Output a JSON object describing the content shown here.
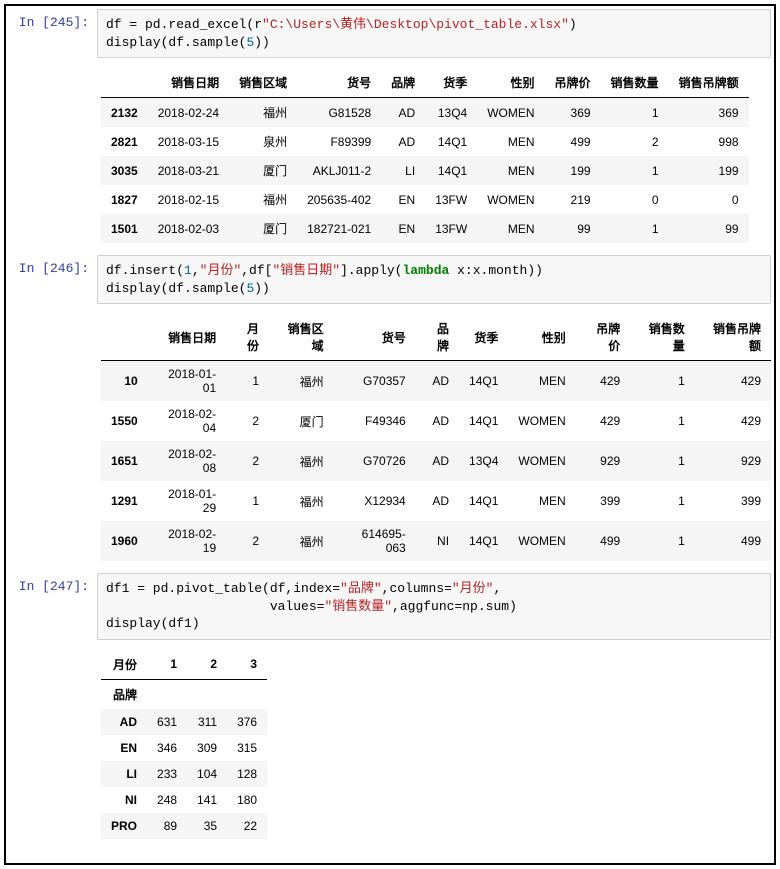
{
  "cell1": {
    "prompt": "In [245]:",
    "code_parts": [
      {
        "t": "df = pd.read_excel(r",
        "c": ""
      },
      {
        "t": "\"C:\\Users\\黄伟\\Desktop\\pivot_table.xlsx\"",
        "c": "c-str"
      },
      {
        "t": ")\n",
        "c": ""
      },
      {
        "t": "display(df.sample(",
        "c": ""
      },
      {
        "t": "5",
        "c": "c-num"
      },
      {
        "t": "))",
        "c": ""
      }
    ],
    "table": {
      "columns": [
        "销售日期",
        "销售区域",
        "货号",
        "品牌",
        "货季",
        "性别",
        "吊牌价",
        "销售数量",
        "销售吊牌额"
      ],
      "index": [
        "2132",
        "2821",
        "3035",
        "1827",
        "1501"
      ],
      "rows": [
        [
          "2018-02-24",
          "福州",
          "G81528",
          "AD",
          "13Q4",
          "WOMEN",
          "369",
          "1",
          "369"
        ],
        [
          "2018-03-15",
          "泉州",
          "F89399",
          "AD",
          "14Q1",
          "MEN",
          "499",
          "2",
          "998"
        ],
        [
          "2018-03-21",
          "厦门",
          "AKLJ011-2",
          "LI",
          "14Q1",
          "MEN",
          "199",
          "1",
          "199"
        ],
        [
          "2018-02-15",
          "福州",
          "205635-402",
          "EN",
          "13FW",
          "WOMEN",
          "219",
          "0",
          "0"
        ],
        [
          "2018-02-03",
          "厦门",
          "182721-021",
          "EN",
          "13FW",
          "MEN",
          "99",
          "1",
          "99"
        ]
      ]
    }
  },
  "cell2": {
    "prompt": "In [246]:",
    "code_parts": [
      {
        "t": "df.insert(",
        "c": ""
      },
      {
        "t": "1",
        "c": "c-num"
      },
      {
        "t": ",",
        "c": ""
      },
      {
        "t": "\"月份\"",
        "c": "c-str"
      },
      {
        "t": ",df[",
        "c": ""
      },
      {
        "t": "\"销售日期\"",
        "c": "c-str"
      },
      {
        "t": "].apply(",
        "c": ""
      },
      {
        "t": "lambda",
        "c": "c-kw"
      },
      {
        "t": " x:x.month))\n",
        "c": ""
      },
      {
        "t": "display(df.sample(",
        "c": ""
      },
      {
        "t": "5",
        "c": "c-num"
      },
      {
        "t": "))",
        "c": ""
      }
    ],
    "table": {
      "columns": [
        "销售日期",
        "月份",
        "销售区域",
        "货号",
        "品牌",
        "货季",
        "性别",
        "吊牌价",
        "销售数量",
        "销售吊牌额"
      ],
      "index": [
        "10",
        "1550",
        "1651",
        "1291",
        "1960"
      ],
      "rows": [
        [
          "2018-01-01",
          "1",
          "福州",
          "G70357",
          "AD",
          "14Q1",
          "MEN",
          "429",
          "1",
          "429"
        ],
        [
          "2018-02-04",
          "2",
          "厦门",
          "F49346",
          "AD",
          "14Q1",
          "WOMEN",
          "429",
          "1",
          "429"
        ],
        [
          "2018-02-08",
          "2",
          "福州",
          "G70726",
          "AD",
          "13Q4",
          "WOMEN",
          "929",
          "1",
          "929"
        ],
        [
          "2018-01-29",
          "1",
          "福州",
          "X12934",
          "AD",
          "14Q1",
          "MEN",
          "399",
          "1",
          "399"
        ],
        [
          "2018-02-19",
          "2",
          "福州",
          "614695-063",
          "NI",
          "14Q1",
          "WOMEN",
          "499",
          "1",
          "499"
        ]
      ]
    }
  },
  "cell3": {
    "prompt": "In [247]:",
    "code_parts": [
      {
        "t": "df1 = pd.pivot_table(df,index=",
        "c": ""
      },
      {
        "t": "\"品牌\"",
        "c": "c-str"
      },
      {
        "t": ",columns=",
        "c": ""
      },
      {
        "t": "\"月份\"",
        "c": "c-str"
      },
      {
        "t": ",\n",
        "c": ""
      },
      {
        "t": "                     values=",
        "c": ""
      },
      {
        "t": "\"销售数量\"",
        "c": "c-str"
      },
      {
        "t": ",aggfunc=np.sum)\n",
        "c": ""
      },
      {
        "t": "display(df1)",
        "c": ""
      }
    ],
    "pivot": {
      "col_name": "月份",
      "idx_name": "品牌",
      "columns": [
        "1",
        "2",
        "3"
      ],
      "index": [
        "AD",
        "EN",
        "LI",
        "NI",
        "PRO"
      ],
      "rows": [
        [
          "631",
          "311",
          "376"
        ],
        [
          "346",
          "309",
          "315"
        ],
        [
          "233",
          "104",
          "128"
        ],
        [
          "248",
          "141",
          "180"
        ],
        [
          "89",
          "35",
          "22"
        ]
      ]
    }
  },
  "style": {
    "prompt_color": "#303f9f",
    "string_color": "#ba2121",
    "number_color": "#006699",
    "keyword_color": "#008000",
    "zebra_odd": "#f5f5f5",
    "zebra_even": "#ffffff",
    "border_color": "#cfcfcf",
    "input_bg": "#f7f7f7",
    "font_mono": "monospace",
    "font_sans": "Helvetica Neue, Helvetica, Arial, sans-serif",
    "table_font_size": 12,
    "code_font_size": 13
  }
}
